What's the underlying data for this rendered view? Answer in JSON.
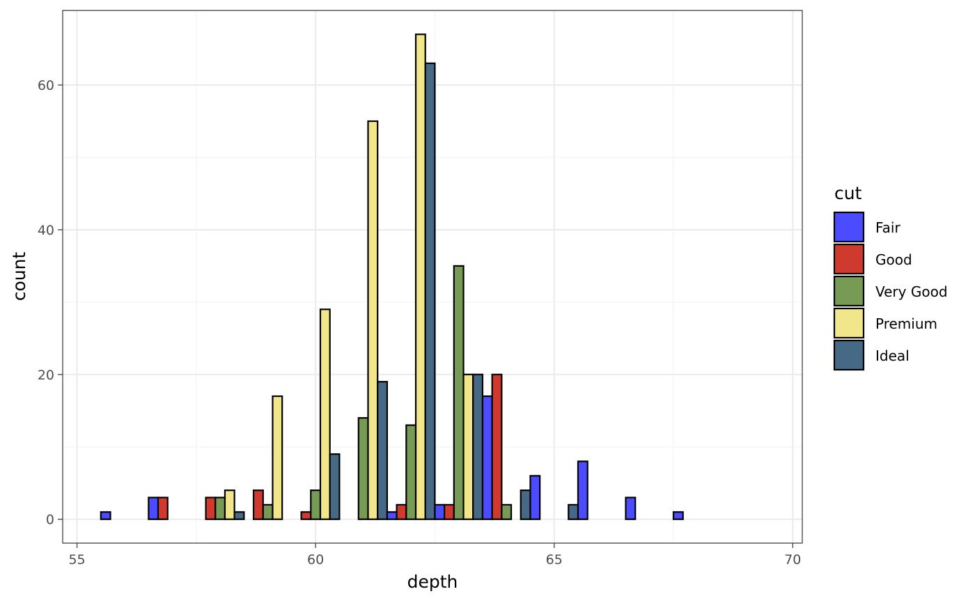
{
  "chart_data": {
    "type": "bar",
    "title": "",
    "xlabel": "depth",
    "ylabel": "count",
    "xlim": [
      54.7,
      70.2
    ],
    "ylim": [
      -3.3,
      70.3
    ],
    "x_ticks": [
      55,
      60,
      65,
      70
    ],
    "x_tick_labels": [
      "55",
      "60",
      "65",
      "70"
    ],
    "y_ticks": [
      0,
      20,
      40,
      60
    ],
    "y_tick_labels": [
      "0",
      "20",
      "40",
      "60"
    ],
    "bin_centers": [
      56,
      57,
      58,
      59,
      60,
      61,
      62,
      63,
      64,
      65,
      66,
      67,
      68,
      69
    ],
    "bin_width": 1,
    "grid": true,
    "legend": {
      "title": "cut",
      "placement": "right"
    },
    "series": [
      {
        "name": "Fair",
        "color": "#4B4BFF",
        "values": [
          1,
          3,
          0,
          0,
          0,
          0,
          1,
          2,
          17,
          6,
          8,
          3,
          1,
          0
        ]
      },
      {
        "name": "Good",
        "color": "#D0392E",
        "values": [
          0,
          3,
          3,
          4,
          1,
          0,
          2,
          2,
          20,
          0,
          0,
          0,
          0,
          0
        ]
      },
      {
        "name": "Very Good",
        "color": "#779B55",
        "values": [
          0,
          0,
          3,
          2,
          4,
          14,
          13,
          35,
          2,
          0,
          0,
          0,
          0,
          0
        ]
      },
      {
        "name": "Premium",
        "color": "#F2E68A",
        "values": [
          0,
          0,
          4,
          17,
          29,
          55,
          67,
          20,
          0,
          0,
          0,
          0,
          0,
          0
        ]
      },
      {
        "name": "Ideal",
        "color": "#466A85",
        "values": [
          0,
          0,
          1,
          0,
          9,
          19,
          63,
          20,
          4,
          2,
          0,
          0,
          0,
          0
        ]
      }
    ]
  }
}
